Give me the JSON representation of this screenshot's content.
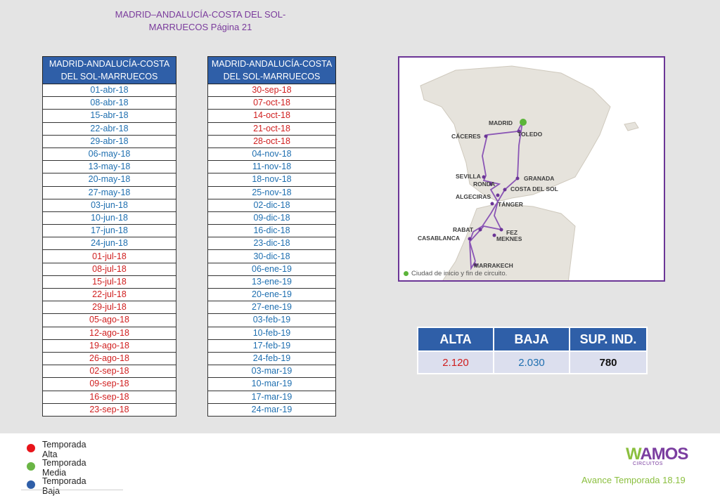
{
  "header": {
    "title_line1": "MADRID–ANDALUCÍA-COSTA DEL SOL-",
    "title_line2": "MARRUECOS Página 21"
  },
  "colors": {
    "alta": "#d01f1f",
    "baja": "#1f6fb0",
    "header_bg": "#2f5fa8",
    "accent": "#7a3b9c"
  },
  "table1": {
    "header_line1": "MADRID-ANDALUCÍA-COSTA",
    "header_line2": "DEL SOL-MARRUECOS",
    "rows": [
      {
        "date": "01-abr-18",
        "season": "baja"
      },
      {
        "date": "08-abr-18",
        "season": "baja"
      },
      {
        "date": "15-abr-18",
        "season": "baja"
      },
      {
        "date": "22-abr-18",
        "season": "baja"
      },
      {
        "date": "29-abr-18",
        "season": "baja"
      },
      {
        "date": "06-may-18",
        "season": "baja"
      },
      {
        "date": "13-may-18",
        "season": "baja"
      },
      {
        "date": "20-may-18",
        "season": "baja"
      },
      {
        "date": "27-may-18",
        "season": "baja"
      },
      {
        "date": "03-jun-18",
        "season": "baja"
      },
      {
        "date": "10-jun-18",
        "season": "baja"
      },
      {
        "date": "17-jun-18",
        "season": "baja"
      },
      {
        "date": "24-jun-18",
        "season": "baja"
      },
      {
        "date": "01-jul-18",
        "season": "alta"
      },
      {
        "date": "08-jul-18",
        "season": "alta"
      },
      {
        "date": "15-jul-18",
        "season": "alta"
      },
      {
        "date": "22-jul-18",
        "season": "alta"
      },
      {
        "date": "29-jul-18",
        "season": "alta"
      },
      {
        "date": "05-ago-18",
        "season": "alta"
      },
      {
        "date": "12-ago-18",
        "season": "alta"
      },
      {
        "date": "19-ago-18",
        "season": "alta"
      },
      {
        "date": "26-ago-18",
        "season": "alta"
      },
      {
        "date": "02-sep-18",
        "season": "alta"
      },
      {
        "date": "09-sep-18",
        "season": "alta"
      },
      {
        "date": "16-sep-18",
        "season": "alta"
      },
      {
        "date": "23-sep-18",
        "season": "alta"
      }
    ]
  },
  "table2": {
    "header_line1": "MADRID-ANDALUCÍA-COSTA",
    "header_line2": "DEL SOL-MARRUECOS",
    "rows": [
      {
        "date": "30-sep-18",
        "season": "alta"
      },
      {
        "date": "07-oct-18",
        "season": "alta"
      },
      {
        "date": "14-oct-18",
        "season": "alta"
      },
      {
        "date": "21-oct-18",
        "season": "alta"
      },
      {
        "date": "28-oct-18",
        "season": "alta"
      },
      {
        "date": "04-nov-18",
        "season": "baja"
      },
      {
        "date": "11-nov-18",
        "season": "baja"
      },
      {
        "date": "18-nov-18",
        "season": "baja"
      },
      {
        "date": "25-nov-18",
        "season": "baja"
      },
      {
        "date": "02-dic-18",
        "season": "baja"
      },
      {
        "date": "09-dic-18",
        "season": "baja"
      },
      {
        "date": "16-dic-18",
        "season": "baja"
      },
      {
        "date": "23-dic-18",
        "season": "baja"
      },
      {
        "date": "30-dic-18",
        "season": "baja"
      },
      {
        "date": "06-ene-19",
        "season": "baja"
      },
      {
        "date": "13-ene-19",
        "season": "baja"
      },
      {
        "date": "20-ene-19",
        "season": "baja"
      },
      {
        "date": "27-ene-19",
        "season": "baja"
      },
      {
        "date": "03-feb-19",
        "season": "baja"
      },
      {
        "date": "10-feb-19",
        "season": "baja"
      },
      {
        "date": "17-feb-19",
        "season": "baja"
      },
      {
        "date": "24-feb-19",
        "season": "baja"
      },
      {
        "date": "03-mar-19",
        "season": "baja"
      },
      {
        "date": "10-mar-19",
        "season": "baja"
      },
      {
        "date": "17-mar-19",
        "season": "baja"
      },
      {
        "date": "24-mar-19",
        "season": "baja"
      }
    ]
  },
  "map": {
    "cities": {
      "madrid": "MADRID",
      "toledo": "TOLEDO",
      "caceres": "CÁCERES",
      "sevilla": "SEVILLA",
      "ronda": "RONDA",
      "granada": "GRANADA",
      "algeciras": "ALGECIRAS",
      "costa": "COSTA DEL SOL",
      "tanger": "TÁNGER",
      "rabat": "RABAT",
      "fez": "FEZ",
      "casablanca": "CASABLANCA",
      "meknes": "MEKNES",
      "marrakech": "MARRAKECH"
    },
    "legend": "Ciudad de inicio y fin de circuito."
  },
  "prices": {
    "headers": [
      "ALTA",
      "BAJA",
      "SUP. IND."
    ],
    "alta": "2.120",
    "baja": "2.030",
    "sup_ind": "780"
  },
  "legend": {
    "alta": "Temporada Alta",
    "media": "Temporada Media",
    "baja": "Temporada Baja",
    "alta_color": "#e8141a",
    "media_color": "#6ab545",
    "baja_color": "#2f5fa8"
  },
  "footer": {
    "logo_w": "W",
    "logo_rest": "AMOS",
    "logo_sub": "CIRCUITOS",
    "avance": "Avance Temporada 18.19"
  }
}
